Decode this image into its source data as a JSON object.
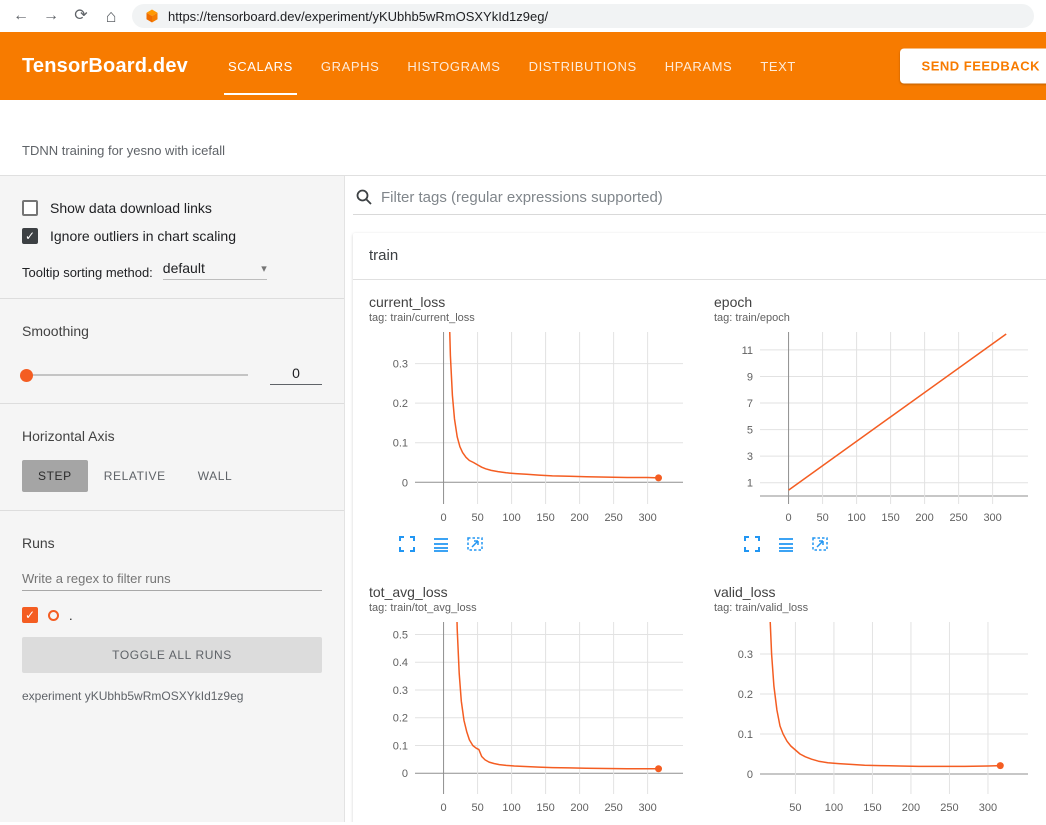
{
  "browser": {
    "url": "https://tensorboard.dev/experiment/yKUbhb5wRmOSXYkId1z9eg/"
  },
  "header": {
    "logo": "TensorBoard.dev",
    "tabs": [
      "SCALARS",
      "GRAPHS",
      "HISTOGRAMS",
      "DISTRIBUTIONS",
      "HPARAMS",
      "TEXT"
    ],
    "feedback_button": "SEND FEEDBACK"
  },
  "description": "TDNN training for yesno with icefall",
  "sidebar": {
    "show_download_label": "Show data download links",
    "ignore_outliers_label": "Ignore outliers in chart scaling",
    "tooltip_label": "Tooltip sorting method:",
    "tooltip_value": "default",
    "smoothing_label": "Smoothing",
    "smoothing_value": "0",
    "haxis_label": "Horizontal Axis",
    "haxis_options": [
      "STEP",
      "RELATIVE",
      "WALL"
    ],
    "runs_label": "Runs",
    "runs_filter_placeholder": "Write a regex to filter runs",
    "run_name": ".",
    "toggle_all": "TOGGLE ALL RUNS",
    "experiment": "experiment yKUbhb5wRmOSXYkId1z9eg"
  },
  "main": {
    "filter_placeholder": "Filter tags (regular expressions supported)",
    "group": "train"
  },
  "icons": {
    "check": "✓",
    "caret": "▾",
    "back": "←",
    "forward": "→",
    "reload": "⟳",
    "home": "⌂"
  },
  "colors": {
    "accent": "#f77b00",
    "run": "#f45d22",
    "chart_icon": "#2196f3",
    "grid": "#e2e2e2",
    "zero_axis": "#8f8f8f"
  },
  "chart_data": [
    {
      "type": "line",
      "title": "current_loss",
      "tag": "tag: train/current_loss",
      "xlabel": "",
      "ylabel": "",
      "xlim": [
        -42,
        352
      ],
      "ylim": [
        -0.055,
        0.38
      ],
      "xticks": [
        0,
        50,
        100,
        150,
        200,
        250,
        300
      ],
      "yticks": [
        0,
        0.1,
        0.2,
        0.3
      ],
      "x": [
        2,
        4,
        6,
        8,
        10,
        13,
        16,
        20,
        24,
        28,
        33,
        38,
        44,
        50,
        56,
        62,
        70,
        80,
        92,
        106,
        122,
        140,
        160,
        185,
        210,
        240,
        270,
        300,
        316
      ],
      "y": [
        1.6,
        1.0,
        0.66,
        0.45,
        0.32,
        0.22,
        0.16,
        0.115,
        0.09,
        0.075,
        0.063,
        0.055,
        0.05,
        0.044,
        0.038,
        0.034,
        0.03,
        0.027,
        0.024,
        0.022,
        0.02,
        0.018,
        0.016,
        0.015,
        0.014,
        0.013,
        0.012,
        0.012,
        0.011
      ],
      "end_marker": true
    },
    {
      "type": "line",
      "title": "epoch",
      "tag": "tag: train/epoch",
      "xlabel": "",
      "ylabel": "",
      "xlim": [
        -42,
        352
      ],
      "ylim": [
        -0.6,
        12.35
      ],
      "xticks": [
        0,
        50,
        100,
        150,
        200,
        250,
        300
      ],
      "yticks": [
        1,
        3,
        5,
        7,
        9,
        11
      ],
      "x": [
        0,
        320
      ],
      "y": [
        0.45,
        12.2
      ],
      "end_marker": false
    },
    {
      "type": "line",
      "title": "tot_avg_loss",
      "tag": "tag: train/tot_avg_loss",
      "xlabel": "",
      "ylabel": "",
      "xlim": [
        -42,
        352
      ],
      "ylim": [
        -0.075,
        0.545
      ],
      "xticks": [
        0,
        50,
        100,
        150,
        200,
        250,
        300
      ],
      "yticks": [
        0,
        0.1,
        0.2,
        0.3,
        0.4,
        0.5
      ],
      "x": [
        14,
        16,
        18,
        20,
        23,
        26,
        30,
        34,
        38,
        43,
        48,
        52,
        56,
        61,
        67,
        74,
        82,
        92,
        104,
        120,
        140,
        160,
        185,
        210,
        240,
        270,
        300,
        316
      ],
      "y": [
        1.6,
        1.05,
        0.72,
        0.52,
        0.36,
        0.26,
        0.19,
        0.15,
        0.12,
        0.1,
        0.09,
        0.085,
        0.06,
        0.048,
        0.04,
        0.035,
        0.031,
        0.028,
        0.026,
        0.024,
        0.022,
        0.02,
        0.019,
        0.018,
        0.017,
        0.016,
        0.016,
        0.016
      ],
      "end_marker": true
    },
    {
      "type": "line",
      "title": "valid_loss",
      "tag": "tag: train/valid_loss",
      "xlabel": "",
      "ylabel": "",
      "xlim": [
        4,
        352
      ],
      "ylim": [
        -0.05,
        0.38
      ],
      "xticks": [
        50,
        100,
        150,
        200,
        250,
        300
      ],
      "yticks": [
        0,
        0.1,
        0.2,
        0.3
      ],
      "x": [
        10,
        12,
        14,
        16,
        19,
        22,
        26,
        30,
        34,
        39,
        44,
        50,
        56,
        63,
        71,
        80,
        92,
        106,
        122,
        140,
        160,
        185,
        210,
        240,
        270,
        300,
        316
      ],
      "y": [
        1.5,
        0.95,
        0.62,
        0.44,
        0.3,
        0.22,
        0.16,
        0.12,
        0.1,
        0.082,
        0.07,
        0.06,
        0.05,
        0.043,
        0.037,
        0.032,
        0.028,
        0.026,
        0.024,
        0.022,
        0.021,
        0.02,
        0.019,
        0.019,
        0.019,
        0.02,
        0.021
      ],
      "end_marker": true
    }
  ]
}
